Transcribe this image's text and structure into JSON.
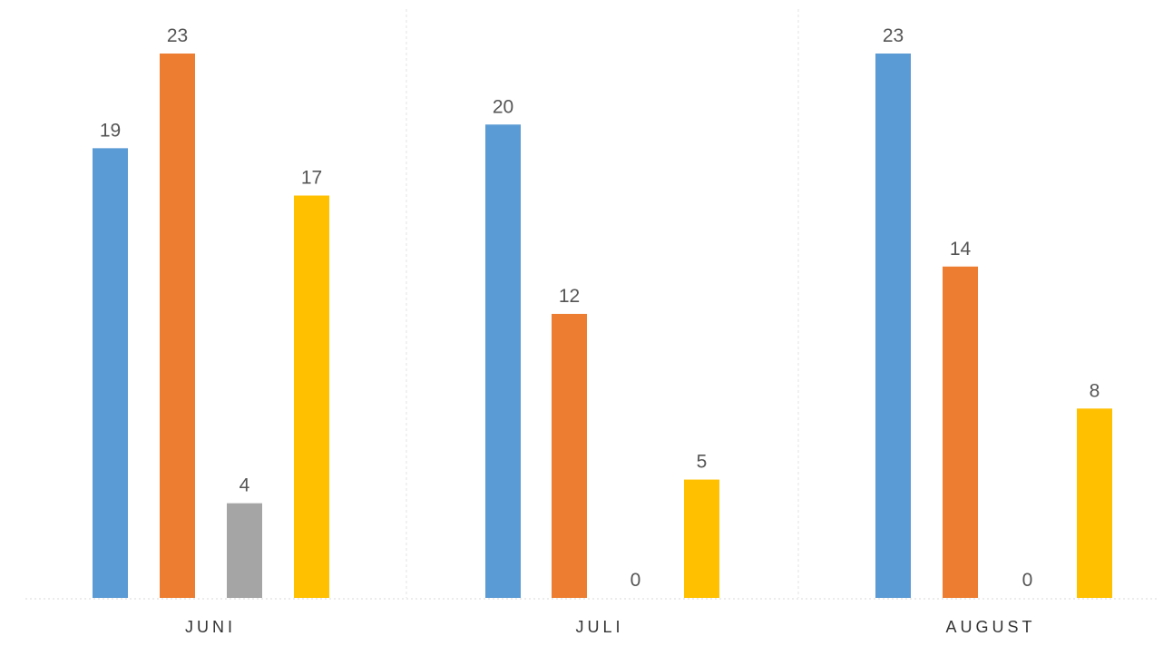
{
  "chart_data": {
    "type": "bar",
    "categories": [
      "JUNI",
      "JULI",
      "AUGUST"
    ],
    "series": [
      {
        "values": [
          19,
          20,
          23
        ],
        "color": "#5B9BD5"
      },
      {
        "values": [
          23,
          12,
          14
        ],
        "color": "#ED7D31"
      },
      {
        "values": [
          4,
          0,
          0
        ],
        "color": "#A5A5A5"
      },
      {
        "values": [
          17,
          5,
          8
        ],
        "color": "#FFC000"
      }
    ],
    "data_labels": true,
    "grid": false,
    "category_separators": true,
    "ylim": [
      0,
      23
    ]
  }
}
